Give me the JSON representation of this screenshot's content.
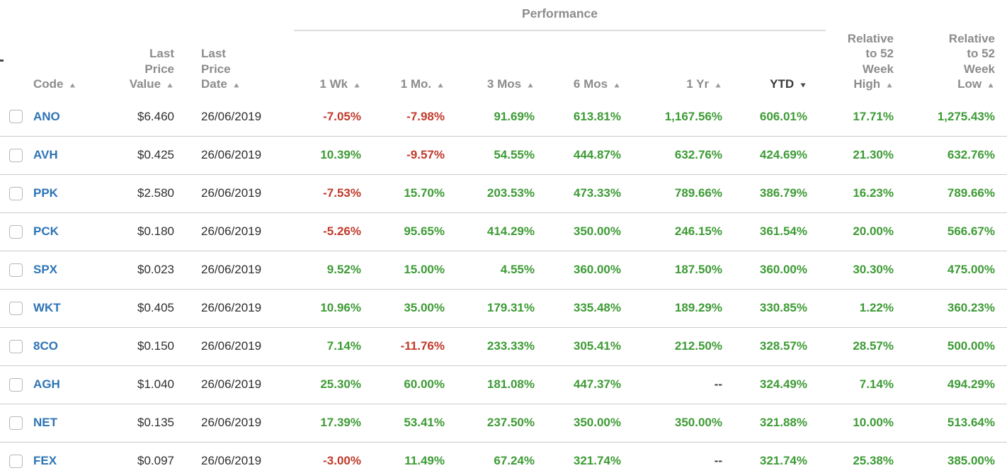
{
  "colors": {
    "positive": "#3d9b35",
    "negative": "#c03a2b",
    "neutral": "#3d3d3d",
    "code_link": "#2d74b5",
    "plain_text": "#2e2e2e",
    "header_gray": "#8c8c8c",
    "active_header": "#3b3b3b",
    "row_divider": "#cccccc",
    "group_underline": "#dddddd"
  },
  "table": {
    "group_header": "Performance",
    "columns": [
      {
        "key": "code",
        "label": "Code",
        "sort": "asc",
        "active": false
      },
      {
        "key": "value",
        "label": "Last\nPrice\nValue",
        "sort": "asc",
        "active": false
      },
      {
        "key": "date",
        "label": "Last\nPrice\nDate",
        "sort": "asc",
        "active": false
      },
      {
        "key": "wk1",
        "label": "1 Wk",
        "sort": "asc",
        "active": false
      },
      {
        "key": "mo1",
        "label": "1 Mo.",
        "sort": "asc",
        "active": false
      },
      {
        "key": "mos3",
        "label": "3 Mos",
        "sort": "asc",
        "active": false
      },
      {
        "key": "mos6",
        "label": "6 Mos",
        "sort": "asc",
        "active": false
      },
      {
        "key": "yr1",
        "label": "1 Yr",
        "sort": "asc",
        "active": false
      },
      {
        "key": "ytd",
        "label": "YTD",
        "sort": "desc",
        "active": true
      },
      {
        "key": "relHigh",
        "label": "Relative\nto 52\nWeek\nHigh",
        "sort": "asc",
        "active": false
      },
      {
        "key": "relLow",
        "label": "Relative\nto 52\nWeek\nLow",
        "sort": "asc",
        "active": false
      }
    ],
    "rows": [
      {
        "code": "ANO",
        "value": "$6.460",
        "date": "26/06/2019",
        "wk1": "-7.05%",
        "mo1": "-7.98%",
        "mos3": "91.69%",
        "mos6": "613.81%",
        "yr1": "1,167.56%",
        "ytd": "606.01%",
        "relHigh": "17.71%",
        "relLow": "1,275.43%"
      },
      {
        "code": "AVH",
        "value": "$0.425",
        "date": "26/06/2019",
        "wk1": "10.39%",
        "mo1": "-9.57%",
        "mos3": "54.55%",
        "mos6": "444.87%",
        "yr1": "632.76%",
        "ytd": "424.69%",
        "relHigh": "21.30%",
        "relLow": "632.76%"
      },
      {
        "code": "PPK",
        "value": "$2.580",
        "date": "26/06/2019",
        "wk1": "-7.53%",
        "mo1": "15.70%",
        "mos3": "203.53%",
        "mos6": "473.33%",
        "yr1": "789.66%",
        "ytd": "386.79%",
        "relHigh": "16.23%",
        "relLow": "789.66%"
      },
      {
        "code": "PCK",
        "value": "$0.180",
        "date": "26/06/2019",
        "wk1": "-5.26%",
        "mo1": "95.65%",
        "mos3": "414.29%",
        "mos6": "350.00%",
        "yr1": "246.15%",
        "ytd": "361.54%",
        "relHigh": "20.00%",
        "relLow": "566.67%"
      },
      {
        "code": "SPX",
        "value": "$0.023",
        "date": "26/06/2019",
        "wk1": "9.52%",
        "mo1": "15.00%",
        "mos3": "4.55%",
        "mos6": "360.00%",
        "yr1": "187.50%",
        "ytd": "360.00%",
        "relHigh": "30.30%",
        "relLow": "475.00%"
      },
      {
        "code": "WKT",
        "value": "$0.405",
        "date": "26/06/2019",
        "wk1": "10.96%",
        "mo1": "35.00%",
        "mos3": "179.31%",
        "mos6": "335.48%",
        "yr1": "189.29%",
        "ytd": "330.85%",
        "relHigh": "1.22%",
        "relLow": "360.23%"
      },
      {
        "code": "8CO",
        "value": "$0.150",
        "date": "26/06/2019",
        "wk1": "7.14%",
        "mo1": "-11.76%",
        "mos3": "233.33%",
        "mos6": "305.41%",
        "yr1": "212.50%",
        "ytd": "328.57%",
        "relHigh": "28.57%",
        "relLow": "500.00%"
      },
      {
        "code": "AGH",
        "value": "$1.040",
        "date": "26/06/2019",
        "wk1": "25.30%",
        "mo1": "60.00%",
        "mos3": "181.08%",
        "mos6": "447.37%",
        "yr1": "--",
        "ytd": "324.49%",
        "relHigh": "7.14%",
        "relLow": "494.29%"
      },
      {
        "code": "NET",
        "value": "$0.135",
        "date": "26/06/2019",
        "wk1": "17.39%",
        "mo1": "53.41%",
        "mos3": "237.50%",
        "mos6": "350.00%",
        "yr1": "350.00%",
        "ytd": "321.88%",
        "relHigh": "10.00%",
        "relLow": "513.64%"
      },
      {
        "code": "FEX",
        "value": "$0.097",
        "date": "26/06/2019",
        "wk1": "-3.00%",
        "mo1": "11.49%",
        "mos3": "67.24%",
        "mos6": "321.74%",
        "yr1": "--",
        "ytd": "321.74%",
        "relHigh": "25.38%",
        "relLow": "385.00%"
      }
    ]
  }
}
